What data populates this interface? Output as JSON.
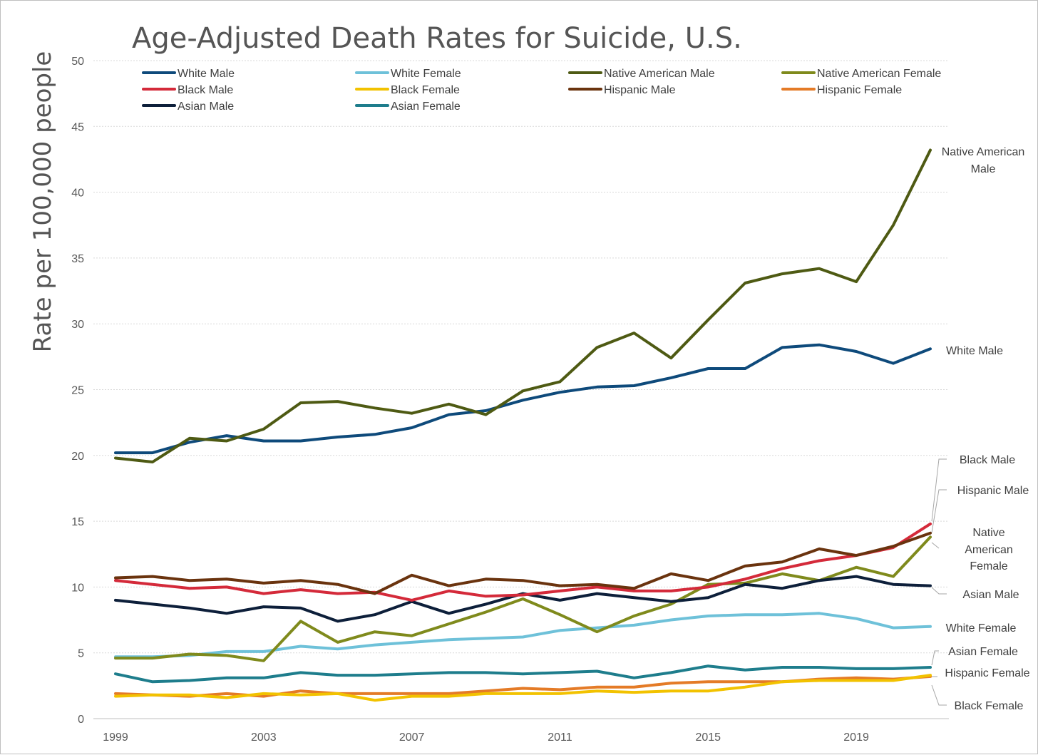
{
  "chart_data": {
    "type": "line",
    "title": "Age-Adjusted Death Rates for Suicide, U.S.",
    "ylabel": "Rate per 100,000 people",
    "xlim": [
      1999,
      2021
    ],
    "ylim": [
      0,
      50
    ],
    "yticks": [
      0,
      5,
      10,
      15,
      20,
      25,
      30,
      35,
      40,
      45,
      50
    ],
    "xticks": [
      1999,
      2003,
      2007,
      2011,
      2015,
      2019
    ],
    "grid": true,
    "legend_position": "top",
    "x": [
      1999,
      2000,
      2001,
      2002,
      2003,
      2004,
      2005,
      2006,
      2007,
      2008,
      2009,
      2010,
      2011,
      2012,
      2013,
      2014,
      2015,
      2016,
      2017,
      2018,
      2019,
      2020,
      2021
    ],
    "series": [
      {
        "name": "White Male",
        "color": "#0e4a7b",
        "end_label": "White Male",
        "values": [
          20.2,
          20.2,
          21.0,
          21.5,
          21.1,
          21.1,
          21.4,
          21.6,
          22.1,
          23.1,
          23.4,
          24.2,
          24.8,
          25.2,
          25.3,
          25.9,
          26.6,
          26.6,
          28.2,
          28.4,
          27.9,
          27.0,
          28.1
        ]
      },
      {
        "name": "White Female",
        "color": "#6ec1d9",
        "end_label": "White Female",
        "values": [
          4.7,
          4.7,
          4.8,
          5.1,
          5.1,
          5.5,
          5.3,
          5.6,
          5.8,
          6.0,
          6.1,
          6.2,
          6.7,
          6.9,
          7.1,
          7.5,
          7.8,
          7.9,
          7.9,
          8.0,
          7.6,
          6.9,
          7.0
        ]
      },
      {
        "name": "Native American Male",
        "color": "#4e5a13",
        "end_label": "Native American Male",
        "values": [
          19.8,
          19.5,
          21.3,
          21.1,
          22.0,
          24.0,
          24.1,
          23.6,
          23.2,
          23.9,
          23.1,
          24.9,
          25.6,
          28.2,
          29.3,
          27.4,
          30.3,
          33.1,
          33.8,
          34.2,
          33.2,
          37.5,
          43.2
        ]
      },
      {
        "name": "Native American Female",
        "color": "#7f8a1c",
        "end_label": "Native American Female",
        "values": [
          4.6,
          4.6,
          4.9,
          4.8,
          4.4,
          7.4,
          5.8,
          6.6,
          6.3,
          7.2,
          8.1,
          9.1,
          7.9,
          6.6,
          7.8,
          8.7,
          10.2,
          10.3,
          11.0,
          10.5,
          11.5,
          10.8,
          13.8
        ]
      },
      {
        "name": "Black Male",
        "color": "#d42a3a",
        "end_label": "Black Male",
        "values": [
          10.5,
          10.2,
          9.9,
          10.0,
          9.5,
          9.8,
          9.5,
          9.6,
          9.0,
          9.7,
          9.3,
          9.4,
          9.7,
          10.0,
          9.7,
          9.7,
          10.0,
          10.6,
          11.4,
          12.0,
          12.4,
          13.0,
          14.8
        ]
      },
      {
        "name": "Black Female",
        "color": "#f2c200",
        "end_label": "Black Female",
        "values": [
          1.7,
          1.8,
          1.8,
          1.6,
          1.9,
          1.8,
          1.9,
          1.4,
          1.7,
          1.7,
          1.9,
          1.9,
          1.9,
          2.1,
          2.0,
          2.1,
          2.1,
          2.4,
          2.8,
          2.9,
          2.9,
          2.9,
          3.3
        ]
      },
      {
        "name": "Hispanic Male",
        "color": "#6a330e",
        "end_label": "Hispanic Male",
        "values": [
          10.7,
          10.8,
          10.5,
          10.6,
          10.3,
          10.5,
          10.2,
          9.5,
          10.9,
          10.1,
          10.6,
          10.5,
          10.1,
          10.2,
          9.9,
          11.0,
          10.5,
          11.6,
          11.9,
          12.9,
          12.4,
          13.1,
          14.1
        ]
      },
      {
        "name": "Hispanic Female",
        "color": "#e47b27",
        "end_label": "Hispanic Female",
        "values": [
          1.9,
          1.8,
          1.7,
          1.9,
          1.7,
          2.1,
          1.9,
          1.9,
          1.9,
          1.9,
          2.1,
          2.3,
          2.2,
          2.4,
          2.4,
          2.7,
          2.8,
          2.8,
          2.8,
          3.0,
          3.1,
          3.0,
          3.2
        ]
      },
      {
        "name": "Asian Male",
        "color": "#0d1f3a",
        "end_label": "Asian Male",
        "values": [
          9.0,
          8.7,
          8.4,
          8.0,
          8.5,
          8.4,
          7.4,
          7.9,
          8.9,
          8.0,
          8.7,
          9.5,
          9.0,
          9.5,
          9.2,
          8.9,
          9.2,
          10.2,
          9.9,
          10.5,
          10.8,
          10.2,
          10.1
        ]
      },
      {
        "name": "Asian Female",
        "color": "#1e7d8c",
        "end_label": "Asian Female",
        "values": [
          3.4,
          2.8,
          2.9,
          3.1,
          3.1,
          3.5,
          3.3,
          3.3,
          3.4,
          3.5,
          3.5,
          3.4,
          3.5,
          3.6,
          3.1,
          3.5,
          4.0,
          3.7,
          3.9,
          3.9,
          3.8,
          3.8,
          3.9
        ]
      }
    ]
  }
}
